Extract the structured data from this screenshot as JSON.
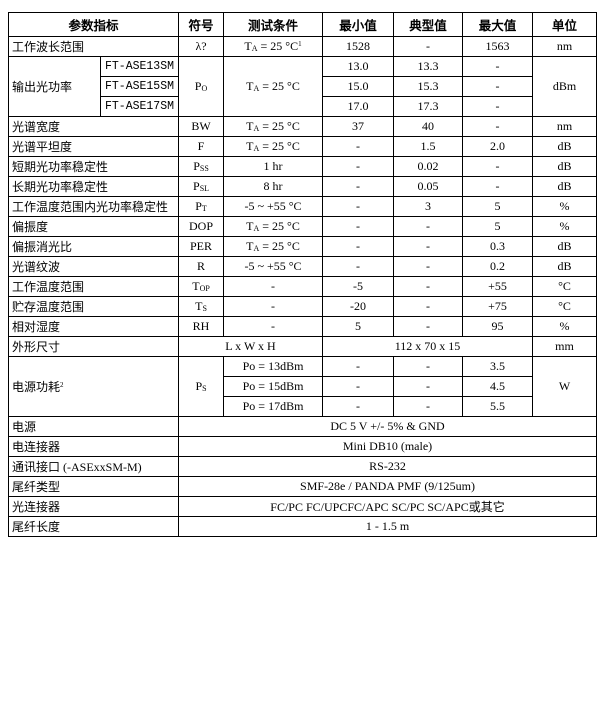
{
  "header": {
    "param": "参数指标",
    "symbol": "符号",
    "cond": "测试条件",
    "min": "最小值",
    "typ": "典型值",
    "max": "最大值",
    "unit": "单位"
  },
  "wavelength": {
    "param": "工作波长范围",
    "symbol": "λ?",
    "cond": "T",
    "cond_sub": "A",
    "cond_post": " = 25 °C",
    "cond_sup": "1",
    "min": "1528",
    "typ": "-",
    "max": "1563",
    "unit": "nm"
  },
  "output_power": {
    "param": "输出光功率",
    "symbol": "P",
    "symbol_sub": "O",
    "cond": "T",
    "cond_sub": "A",
    "cond_post": " = 25 °C",
    "unit": "dBm",
    "models": [
      {
        "model": "FT-ASE13SM",
        "min": "13.0",
        "typ": "13.3",
        "max": "-"
      },
      {
        "model": "FT-ASE15SM",
        "min": "15.0",
        "typ": "15.3",
        "max": "-"
      },
      {
        "model": "FT-ASE17SM",
        "min": "17.0",
        "typ": "17.3",
        "max": "-"
      }
    ]
  },
  "rows": [
    {
      "param": "光谱宽度",
      "symbol": "BW",
      "symbol_sub": "",
      "cond": "T",
      "cond_sub": "A",
      "cond_post": " = 25 °C",
      "min": "37",
      "typ": "40",
      "max": "-",
      "unit": "nm"
    },
    {
      "param": "光谱平坦度",
      "symbol": "F",
      "symbol_sub": "",
      "cond": "T",
      "cond_sub": "A",
      "cond_post": " = 25 °C",
      "min": "-",
      "typ": "1.5",
      "max": "2.0",
      "unit": "dB"
    },
    {
      "param": "短期光功率稳定性",
      "symbol": "P",
      "symbol_sub": "SS",
      "cond": "1 hr",
      "cond_sub": "",
      "cond_post": "",
      "min": "-",
      "typ": "0.02",
      "max": "-",
      "unit": "dB"
    },
    {
      "param": "长期光功率稳定性",
      "symbol": "P",
      "symbol_sub": "SL",
      "cond": "8 hr",
      "cond_sub": "",
      "cond_post": "",
      "min": "-",
      "typ": "0.05",
      "max": "-",
      "unit": "dB"
    },
    {
      "param": "工作温度范围内光功率稳定性",
      "symbol": "P",
      "symbol_sub": "T",
      "cond": "-5 ~ +55 °C",
      "cond_sub": "",
      "cond_post": "",
      "min": "-",
      "typ": "3",
      "max": "5",
      "unit": "%"
    },
    {
      "param": "偏振度",
      "symbol": "DOP",
      "symbol_sub": "",
      "cond": "T",
      "cond_sub": "A",
      "cond_post": " = 25 °C",
      "min": "-",
      "typ": "-",
      "max": "5",
      "unit": "%"
    },
    {
      "param": "偏振消光比",
      "symbol": "PER",
      "symbol_sub": "",
      "cond": "T",
      "cond_sub": "A",
      "cond_post": " = 25 °C",
      "min": "-",
      "typ": "-",
      "max": "0.3",
      "unit": "dB"
    },
    {
      "param": "光谱纹波",
      "symbol": "R",
      "symbol_sub": "",
      "cond": "-5 ~ +55 °C",
      "cond_sub": "",
      "cond_post": "",
      "min": "-",
      "typ": "-",
      "max": "0.2",
      "unit": "dB"
    },
    {
      "param": "工作温度范围",
      "symbol": "T",
      "symbol_sub": "OP",
      "cond": "-",
      "cond_sub": "",
      "cond_post": "",
      "min": "-5",
      "typ": "-",
      "max": "+55",
      "unit": "°C"
    },
    {
      "param": "贮存温度范围",
      "symbol": "T",
      "symbol_sub": "S",
      "cond": "-",
      "cond_sub": "",
      "cond_post": "",
      "min": "-20",
      "typ": "-",
      "max": "+75",
      "unit": "°C"
    },
    {
      "param": "相对湿度",
      "symbol": "RH",
      "symbol_sub": "",
      "cond": "-",
      "cond_sub": "",
      "cond_post": "",
      "min": "5",
      "typ": "-",
      "max": "95",
      "unit": "%"
    }
  ],
  "dimensions": {
    "param": "外形尺寸",
    "symbol": "L x W x H",
    "value": "112 x 70 x 15",
    "unit": "mm"
  },
  "power_consumption": {
    "param": "电源功耗",
    "param_sup": "2",
    "symbol": "P",
    "symbol_sub": "S",
    "unit": "W",
    "items": [
      {
        "cond": "Po = 13dBm",
        "min": "-",
        "typ": "-",
        "max": "3.5"
      },
      {
        "cond": "Po = 15dBm",
        "min": "-",
        "typ": "-",
        "max": "4.5"
      },
      {
        "cond": "Po = 17dBm",
        "min": "-",
        "typ": "-",
        "max": "5.5"
      }
    ]
  },
  "specs": [
    {
      "param": "电源",
      "value": "DC 5 V +/- 5%  & GND"
    },
    {
      "param": "电连接器",
      "value": "Mini DB10 (male)"
    },
    {
      "param": "通讯接口  (-ASExxSM-M)",
      "value": "RS-232"
    },
    {
      "param": "尾纤类型",
      "value": "SMF-28e / PANDA PMF (9/125um)"
    },
    {
      "param": "光连接器",
      "value": "FC/PC FC/UPCFC/APC SC/PC SC/APC或其它"
    },
    {
      "param": "尾纤长度",
      "value": "1 - 1.5 m"
    }
  ]
}
